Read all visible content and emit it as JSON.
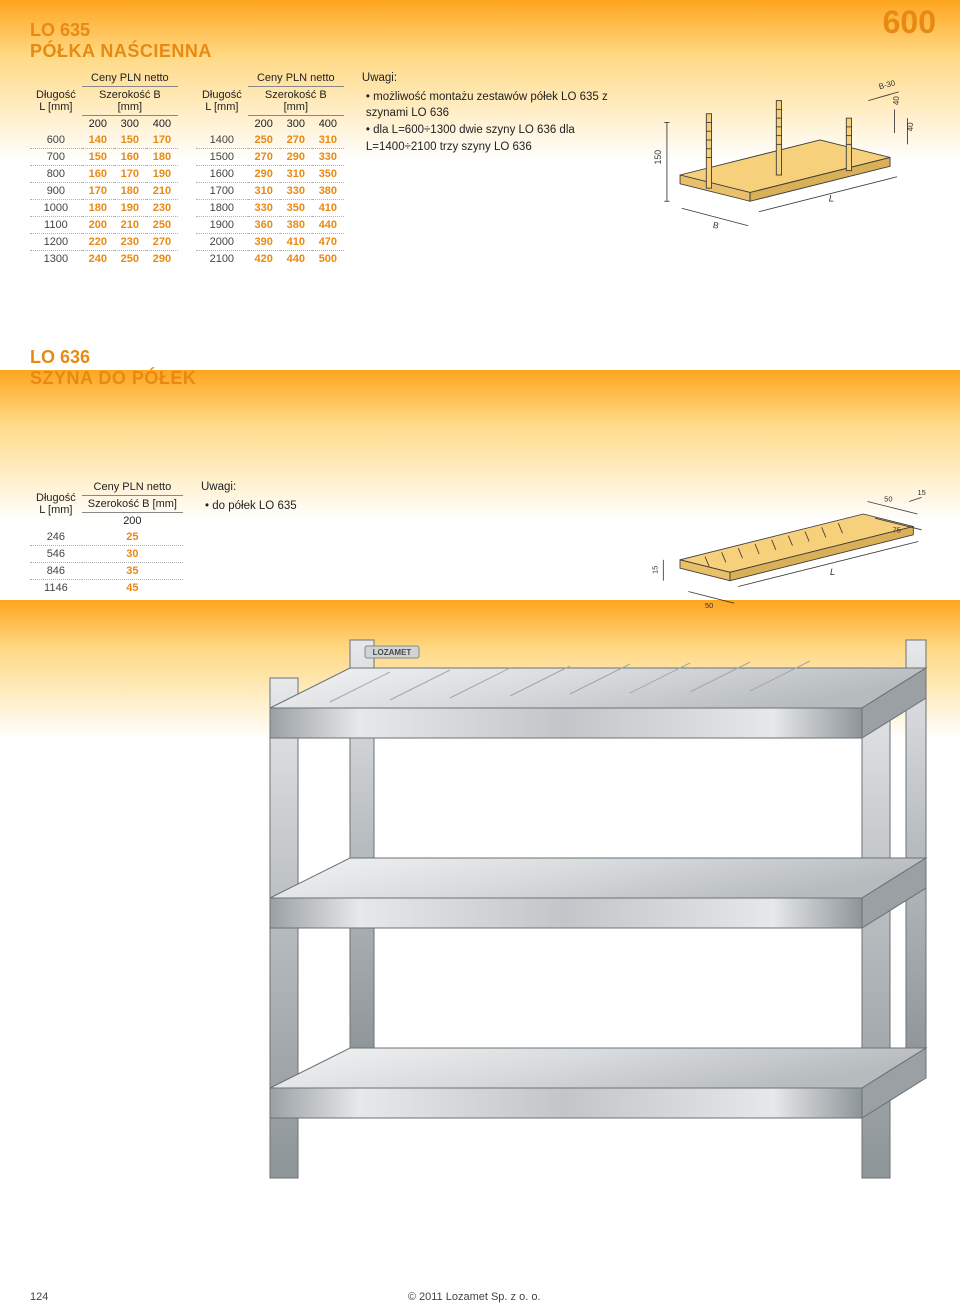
{
  "page_number": "124",
  "copyright": "© 2011 Lozamet Sp. z o. o.",
  "corner_tag": "600",
  "section1": {
    "code": "LO 635",
    "name": "PÓŁKA NAŚCIENNA",
    "length_label": "Długość",
    "length_unit": "L [mm]",
    "price_label": "Ceny PLN netto",
    "width_label": "Szerokość B [mm]",
    "table_a": {
      "widths": [
        "200",
        "300",
        "400"
      ],
      "rows": [
        {
          "len": "600",
          "v": [
            "140",
            "150",
            "170"
          ]
        },
        {
          "len": "700",
          "v": [
            "150",
            "160",
            "180"
          ]
        },
        {
          "len": "800",
          "v": [
            "160",
            "170",
            "190"
          ]
        },
        {
          "len": "900",
          "v": [
            "170",
            "180",
            "210"
          ]
        },
        {
          "len": "1000",
          "v": [
            "180",
            "190",
            "230"
          ]
        },
        {
          "len": "1100",
          "v": [
            "200",
            "210",
            "250"
          ]
        },
        {
          "len": "1200",
          "v": [
            "220",
            "230",
            "270"
          ]
        },
        {
          "len": "1300",
          "v": [
            "240",
            "250",
            "290"
          ]
        }
      ]
    },
    "table_b": {
      "widths": [
        "200",
        "300",
        "400"
      ],
      "rows": [
        {
          "len": "1400",
          "v": [
            "250",
            "270",
            "310"
          ]
        },
        {
          "len": "1500",
          "v": [
            "270",
            "290",
            "330"
          ]
        },
        {
          "len": "1600",
          "v": [
            "290",
            "310",
            "350"
          ]
        },
        {
          "len": "1700",
          "v": [
            "310",
            "330",
            "380"
          ]
        },
        {
          "len": "1800",
          "v": [
            "330",
            "350",
            "410"
          ]
        },
        {
          "len": "1900",
          "v": [
            "360",
            "380",
            "440"
          ]
        },
        {
          "len": "2000",
          "v": [
            "390",
            "410",
            "470"
          ]
        },
        {
          "len": "2100",
          "v": [
            "420",
            "440",
            "500"
          ]
        }
      ]
    },
    "notes_label": "Uwagi:",
    "notes": [
      "możliwość montażu zestawów półek LO 635 z szynami LO 636",
      "dla L=600÷1300 dwie szyny LO 636 dla L=1400÷2100 trzy szyny LO 636"
    ],
    "diagram": {
      "dims": {
        "height_label": "150",
        "width_label": "B",
        "depth_label": "L",
        "offset1": "40",
        "offset2": "40",
        "top_label": "B-30"
      },
      "line_color": "#3a3a3a",
      "fill_color": "#f6d07a"
    }
  },
  "section2": {
    "code": "LO 636",
    "name": "SZYNA DO PÓŁEK",
    "length_label": "Długość",
    "length_unit": "L [mm]",
    "price_label": "Ceny PLN netto",
    "width_label": "Szerokość B [mm]",
    "table": {
      "widths": [
        "200"
      ],
      "rows": [
        {
          "len": "246",
          "v": [
            "25"
          ]
        },
        {
          "len": "546",
          "v": [
            "30"
          ]
        },
        {
          "len": "846",
          "v": [
            "35"
          ]
        },
        {
          "len": "1146",
          "v": [
            "45"
          ]
        }
      ]
    },
    "notes_label": "Uwagi:",
    "notes": [
      "do półek LO 635"
    ],
    "diagram": {
      "dims": {
        "w": "50",
        "h": "15",
        "t": "15",
        "flange": "75",
        "flange2": "50",
        "len": "L"
      },
      "line_color": "#3a3a3a",
      "fill_color": "#f6d07a"
    }
  },
  "photo": {
    "brand": "LOZAMET",
    "steel_light": "#e6e8ea",
    "steel_mid": "#c2c6c9",
    "steel_dark": "#8e9599",
    "edge": "#6b7276"
  },
  "colors": {
    "accent": "#e88a12",
    "gradient_top": "#ffa51e",
    "gradient_bot": "#ffffff"
  }
}
